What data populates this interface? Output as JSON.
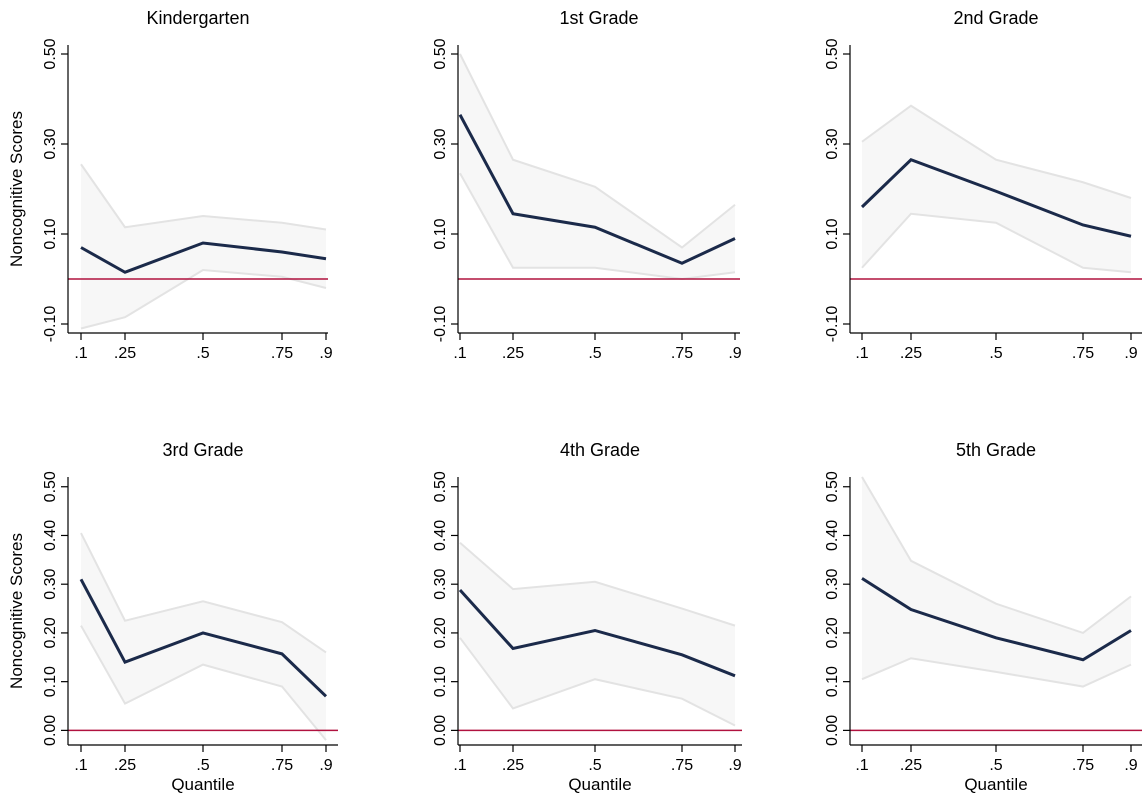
{
  "colors": {
    "estimate_line": "#1b2a4a",
    "ci_band_fill": "#f7f7f7",
    "ci_band_edge": "#e3e3e3",
    "zero_line": "#b0123f",
    "axis": "#000000"
  },
  "chart_data": [
    {
      "type": "line",
      "title": "Kindergarten",
      "xlabel": "",
      "ylabel": "Noncognitive Scores",
      "x": [
        0.1,
        0.25,
        0.5,
        0.75,
        0.9
      ],
      "xticks": [
        ".1",
        ".25",
        ".5",
        ".75",
        ".9"
      ],
      "ylim": [
        -0.12,
        0.52
      ],
      "yticks": [
        -0.1,
        0.1,
        0.3,
        0.5
      ],
      "ytick_labels": [
        "-0.10",
        "0.10",
        "0.30",
        "0.50"
      ],
      "series": [
        {
          "values": [
            0.07,
            0.015,
            0.08,
            0.06,
            0.045
          ]
        },
        {
          "values": [
            0.255,
            0.115,
            0.14,
            0.125,
            0.11
          ]
        },
        {
          "values": [
            -0.11,
            -0.085,
            0.02,
            0.005,
            -0.02
          ]
        }
      ],
      "reference_y": 0.0
    },
    {
      "type": "line",
      "title": "1st Grade",
      "xlabel": "",
      "ylabel": "",
      "x": [
        0.1,
        0.25,
        0.5,
        0.75,
        0.9
      ],
      "xticks": [
        ".1",
        ".25",
        ".5",
        ".75",
        ".9"
      ],
      "ylim": [
        -0.12,
        0.52
      ],
      "yticks": [
        -0.1,
        0.1,
        0.3,
        0.5
      ],
      "ytick_labels": [
        "-0.10",
        "0.10",
        "0.30",
        "0.50"
      ],
      "series": [
        {
          "values": [
            0.365,
            0.145,
            0.115,
            0.035,
            0.09
          ]
        },
        {
          "values": [
            0.5,
            0.265,
            0.205,
            0.07,
            0.165
          ]
        },
        {
          "values": [
            0.235,
            0.025,
            0.025,
            0.0,
            0.015
          ]
        }
      ],
      "reference_y": 0.0
    },
    {
      "type": "line",
      "title": "2nd Grade",
      "xlabel": "",
      "ylabel": "",
      "x": [
        0.1,
        0.25,
        0.5,
        0.75,
        0.9
      ],
      "xticks": [
        ".1",
        ".25",
        ".5",
        ".75",
        ".9"
      ],
      "ylim": [
        -0.12,
        0.52
      ],
      "yticks": [
        -0.1,
        0.1,
        0.3,
        0.5
      ],
      "ytick_labels": [
        "-0.10",
        "0.10",
        "0.30",
        "0.50"
      ],
      "series": [
        {
          "values": [
            0.16,
            0.265,
            0.195,
            0.12,
            0.095
          ]
        },
        {
          "values": [
            0.305,
            0.385,
            0.265,
            0.215,
            0.18
          ]
        },
        {
          "values": [
            0.025,
            0.145,
            0.125,
            0.025,
            0.015
          ]
        }
      ],
      "reference_y": 0.0
    },
    {
      "type": "line",
      "title": "3rd Grade",
      "xlabel": "Quantile",
      "ylabel": "Noncognitive Scores",
      "x": [
        0.1,
        0.25,
        0.5,
        0.75,
        0.9
      ],
      "xticks": [
        ".1",
        ".25",
        ".5",
        ".75",
        ".9"
      ],
      "ylim": [
        -0.03,
        0.52
      ],
      "yticks": [
        0.0,
        0.1,
        0.2,
        0.3,
        0.4,
        0.5
      ],
      "ytick_labels": [
        "0.00",
        "0.10",
        "0.20",
        "0.30",
        "0.40",
        "0.50"
      ],
      "series": [
        {
          "values": [
            0.31,
            0.14,
            0.2,
            0.157,
            0.07
          ]
        },
        {
          "values": [
            0.405,
            0.225,
            0.265,
            0.222,
            0.16
          ]
        },
        {
          "values": [
            0.215,
            0.055,
            0.135,
            0.09,
            -0.02
          ]
        }
      ],
      "reference_y": 0.0
    },
    {
      "type": "line",
      "title": "4th Grade",
      "xlabel": "Quantile",
      "ylabel": "",
      "x": [
        0.1,
        0.25,
        0.5,
        0.75,
        0.9
      ],
      "xticks": [
        ".1",
        ".25",
        ".5",
        ".75",
        ".9"
      ],
      "ylim": [
        -0.03,
        0.52
      ],
      "yticks": [
        0.0,
        0.1,
        0.2,
        0.3,
        0.4,
        0.5
      ],
      "ytick_labels": [
        "0.00",
        "0.10",
        "0.20",
        "0.30",
        "0.40",
        "0.50"
      ],
      "series": [
        {
          "values": [
            0.288,
            0.168,
            0.205,
            0.155,
            0.112
          ]
        },
        {
          "values": [
            0.385,
            0.29,
            0.305,
            0.25,
            0.215
          ]
        },
        {
          "values": [
            0.19,
            0.045,
            0.105,
            0.065,
            0.01
          ]
        }
      ],
      "reference_y": 0.0
    },
    {
      "type": "line",
      "title": "5th Grade",
      "xlabel": "Quantile",
      "ylabel": "",
      "x": [
        0.1,
        0.25,
        0.5,
        0.75,
        0.9
      ],
      "xticks": [
        ".1",
        ".25",
        ".5",
        ".75",
        ".9"
      ],
      "ylim": [
        -0.03,
        0.52
      ],
      "yticks": [
        0.0,
        0.1,
        0.2,
        0.3,
        0.4,
        0.5
      ],
      "ytick_labels": [
        "0.00",
        "0.10",
        "0.20",
        "0.30",
        "0.40",
        "0.50"
      ],
      "series": [
        {
          "values": [
            0.312,
            0.248,
            0.19,
            0.145,
            0.205
          ]
        },
        {
          "values": [
            0.52,
            0.348,
            0.26,
            0.2,
            0.275
          ]
        },
        {
          "values": [
            0.105,
            0.148,
            0.12,
            0.09,
            0.135
          ]
        }
      ],
      "reference_y": 0.0
    }
  ]
}
